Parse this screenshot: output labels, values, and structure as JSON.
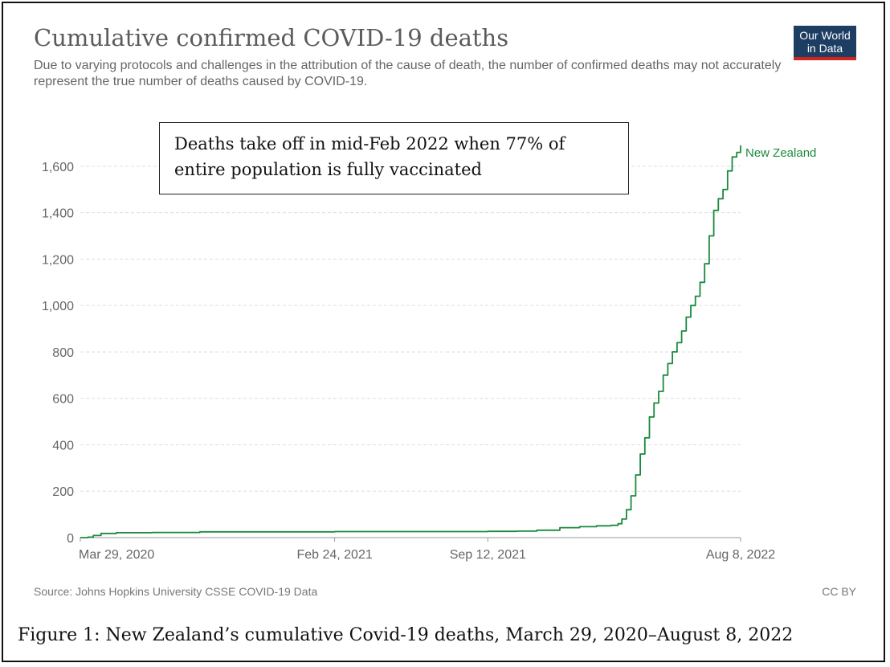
{
  "header": {
    "title": "Cumulative confirmed COVID-19 deaths",
    "subtitle": "Due to varying protocols and challenges in the attribution of the cause of death, the number of confirmed deaths may not accurately represent the true number of deaths caused by COVID-19."
  },
  "logo": {
    "line1": "Our World",
    "line2": "in Data",
    "bg_color": "#1d3d63",
    "accent_color": "#ce261e"
  },
  "annotation": {
    "text": "Deaths take off in mid-Feb 2022 when 77% of entire population is fully vaccinated"
  },
  "footer": {
    "source": "Source: Johns Hopkins University CSSE COVID-19 Data",
    "license": "CC BY"
  },
  "caption": {
    "text": "Figure 1: New Zealand’s cumulative Covid-19 deaths, March 29, 2020–August 8, 2022"
  },
  "chart_data": {
    "type": "line",
    "title": "Cumulative confirmed COVID-19 deaths",
    "xlabel": "",
    "ylabel": "",
    "ylim": [
      0,
      1700
    ],
    "xrange": [
      "2020-03-29",
      "2022-08-08"
    ],
    "yticks": [
      0,
      200,
      400,
      600,
      800,
      1000,
      1200,
      1400,
      1600
    ],
    "ytick_labels": [
      "0",
      "200",
      "400",
      "600",
      "800",
      "1,000",
      "1,200",
      "1,400",
      "1,600"
    ],
    "xticks": [
      {
        "date": "2020-03-29",
        "label": "Mar 29, 2020"
      },
      {
        "date": "2021-02-24",
        "label": "Feb 24, 2021"
      },
      {
        "date": "2021-09-12",
        "label": "Sep 12, 2021"
      },
      {
        "date": "2022-08-08",
        "label": "Aug 8, 2022"
      }
    ],
    "grid": true,
    "line_color": "#1a8a3c",
    "series": [
      {
        "name": "New Zealand",
        "points": [
          {
            "date": "2020-03-29",
            "value": 0
          },
          {
            "date": "2020-04-08",
            "value": 2
          },
          {
            "date": "2020-04-15",
            "value": 9
          },
          {
            "date": "2020-04-25",
            "value": 18
          },
          {
            "date": "2020-05-15",
            "value": 21
          },
          {
            "date": "2020-07-01",
            "value": 22
          },
          {
            "date": "2020-09-01",
            "value": 25
          },
          {
            "date": "2021-02-24",
            "value": 26
          },
          {
            "date": "2021-09-12",
            "value": 27
          },
          {
            "date": "2021-10-20",
            "value": 28
          },
          {
            "date": "2021-11-15",
            "value": 32
          },
          {
            "date": "2021-12-15",
            "value": 43
          },
          {
            "date": "2022-01-10",
            "value": 47
          },
          {
            "date": "2022-02-01",
            "value": 51
          },
          {
            "date": "2022-02-20",
            "value": 53
          },
          {
            "date": "2022-03-01",
            "value": 60
          },
          {
            "date": "2022-03-06",
            "value": 80
          },
          {
            "date": "2022-03-12",
            "value": 120
          },
          {
            "date": "2022-03-18",
            "value": 180
          },
          {
            "date": "2022-03-24",
            "value": 270
          },
          {
            "date": "2022-03-30",
            "value": 360
          },
          {
            "date": "2022-04-05",
            "value": 430
          },
          {
            "date": "2022-04-11",
            "value": 520
          },
          {
            "date": "2022-04-17",
            "value": 580
          },
          {
            "date": "2022-04-23",
            "value": 630
          },
          {
            "date": "2022-04-29",
            "value": 700
          },
          {
            "date": "2022-05-05",
            "value": 750
          },
          {
            "date": "2022-05-11",
            "value": 800
          },
          {
            "date": "2022-05-17",
            "value": 840
          },
          {
            "date": "2022-05-23",
            "value": 890
          },
          {
            "date": "2022-05-29",
            "value": 950
          },
          {
            "date": "2022-06-04",
            "value": 1000
          },
          {
            "date": "2022-06-10",
            "value": 1040
          },
          {
            "date": "2022-06-16",
            "value": 1100
          },
          {
            "date": "2022-06-22",
            "value": 1180
          },
          {
            "date": "2022-06-28",
            "value": 1300
          },
          {
            "date": "2022-07-04",
            "value": 1410
          },
          {
            "date": "2022-07-10",
            "value": 1460
          },
          {
            "date": "2022-07-16",
            "value": 1500
          },
          {
            "date": "2022-07-22",
            "value": 1580
          },
          {
            "date": "2022-07-28",
            "value": 1640
          },
          {
            "date": "2022-08-03",
            "value": 1660
          },
          {
            "date": "2022-08-08",
            "value": 1690
          }
        ]
      }
    ]
  }
}
